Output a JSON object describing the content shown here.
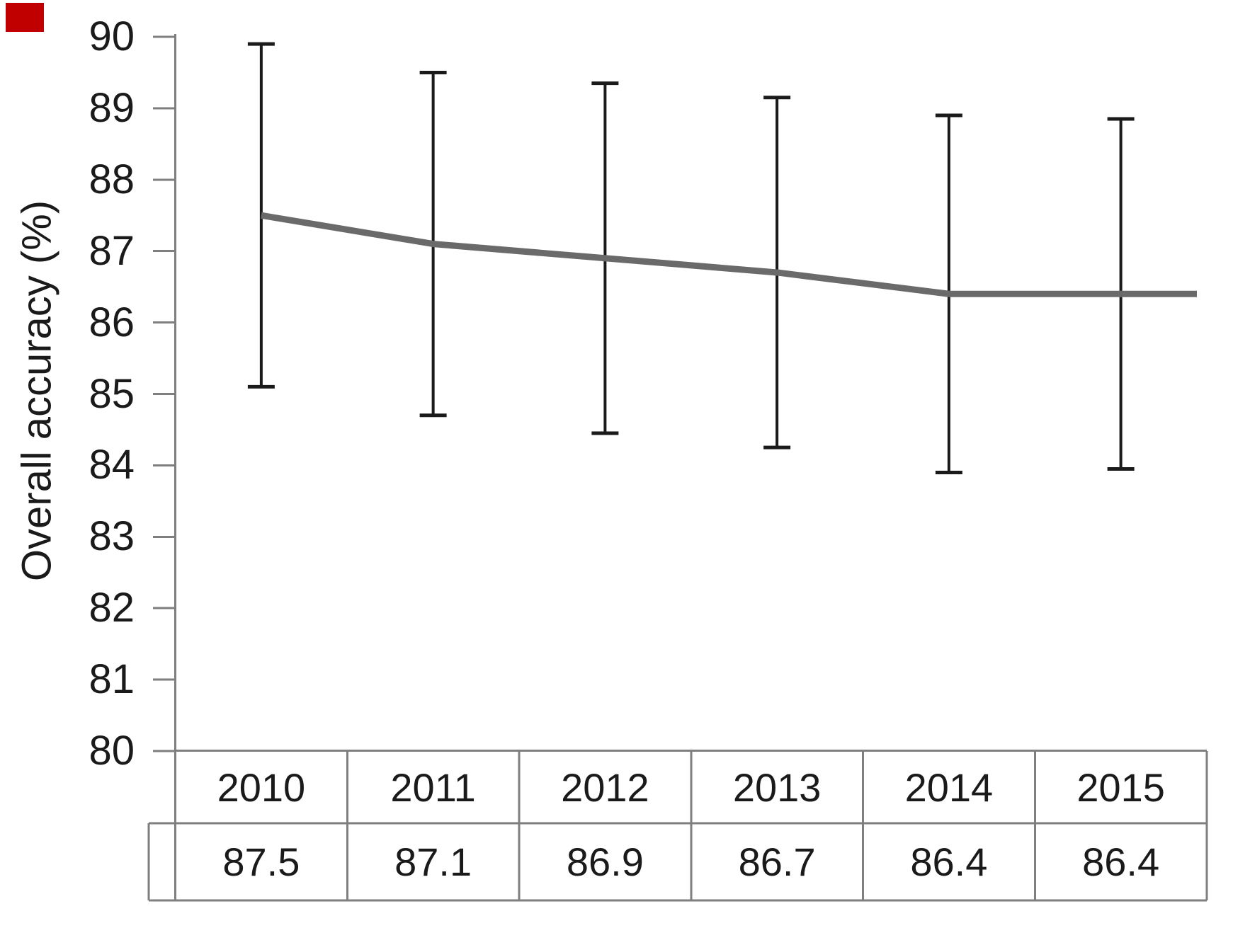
{
  "corner_marker": {
    "color": "#c00000"
  },
  "chart_data": {
    "type": "line",
    "title": "",
    "xlabel": "",
    "ylabel": "Overall accuracy (%)",
    "categories": [
      "2010",
      "2011",
      "2012",
      "2013",
      "2014",
      "2015"
    ],
    "series": [
      {
        "name": "Overall accuracy (%)",
        "values": [
          87.5,
          87.1,
          86.9,
          86.7,
          86.4,
          86.4
        ],
        "error_upper": [
          89.9,
          89.5,
          89.35,
          89.15,
          88.9,
          88.85
        ],
        "error_lower": [
          85.1,
          84.7,
          84.45,
          84.25,
          83.9,
          83.95
        ]
      }
    ],
    "ylim": [
      80,
      90
    ],
    "yticks": [
      90,
      89,
      88,
      87,
      86,
      85,
      84,
      83,
      82,
      81,
      80
    ],
    "grid": false,
    "legend": false,
    "colors": {
      "line": "#6a6a6a",
      "error_bar": "#1a1a1a",
      "axis": "#7f7f7f",
      "table_border": "#7f7f7f",
      "text": "#1a1a1a"
    }
  },
  "table": {
    "years": [
      "2010",
      "2011",
      "2012",
      "2013",
      "2014",
      "2015"
    ],
    "values": [
      "87.5",
      "87.1",
      "86.9",
      "86.7",
      "86.4",
      "86.4"
    ]
  }
}
